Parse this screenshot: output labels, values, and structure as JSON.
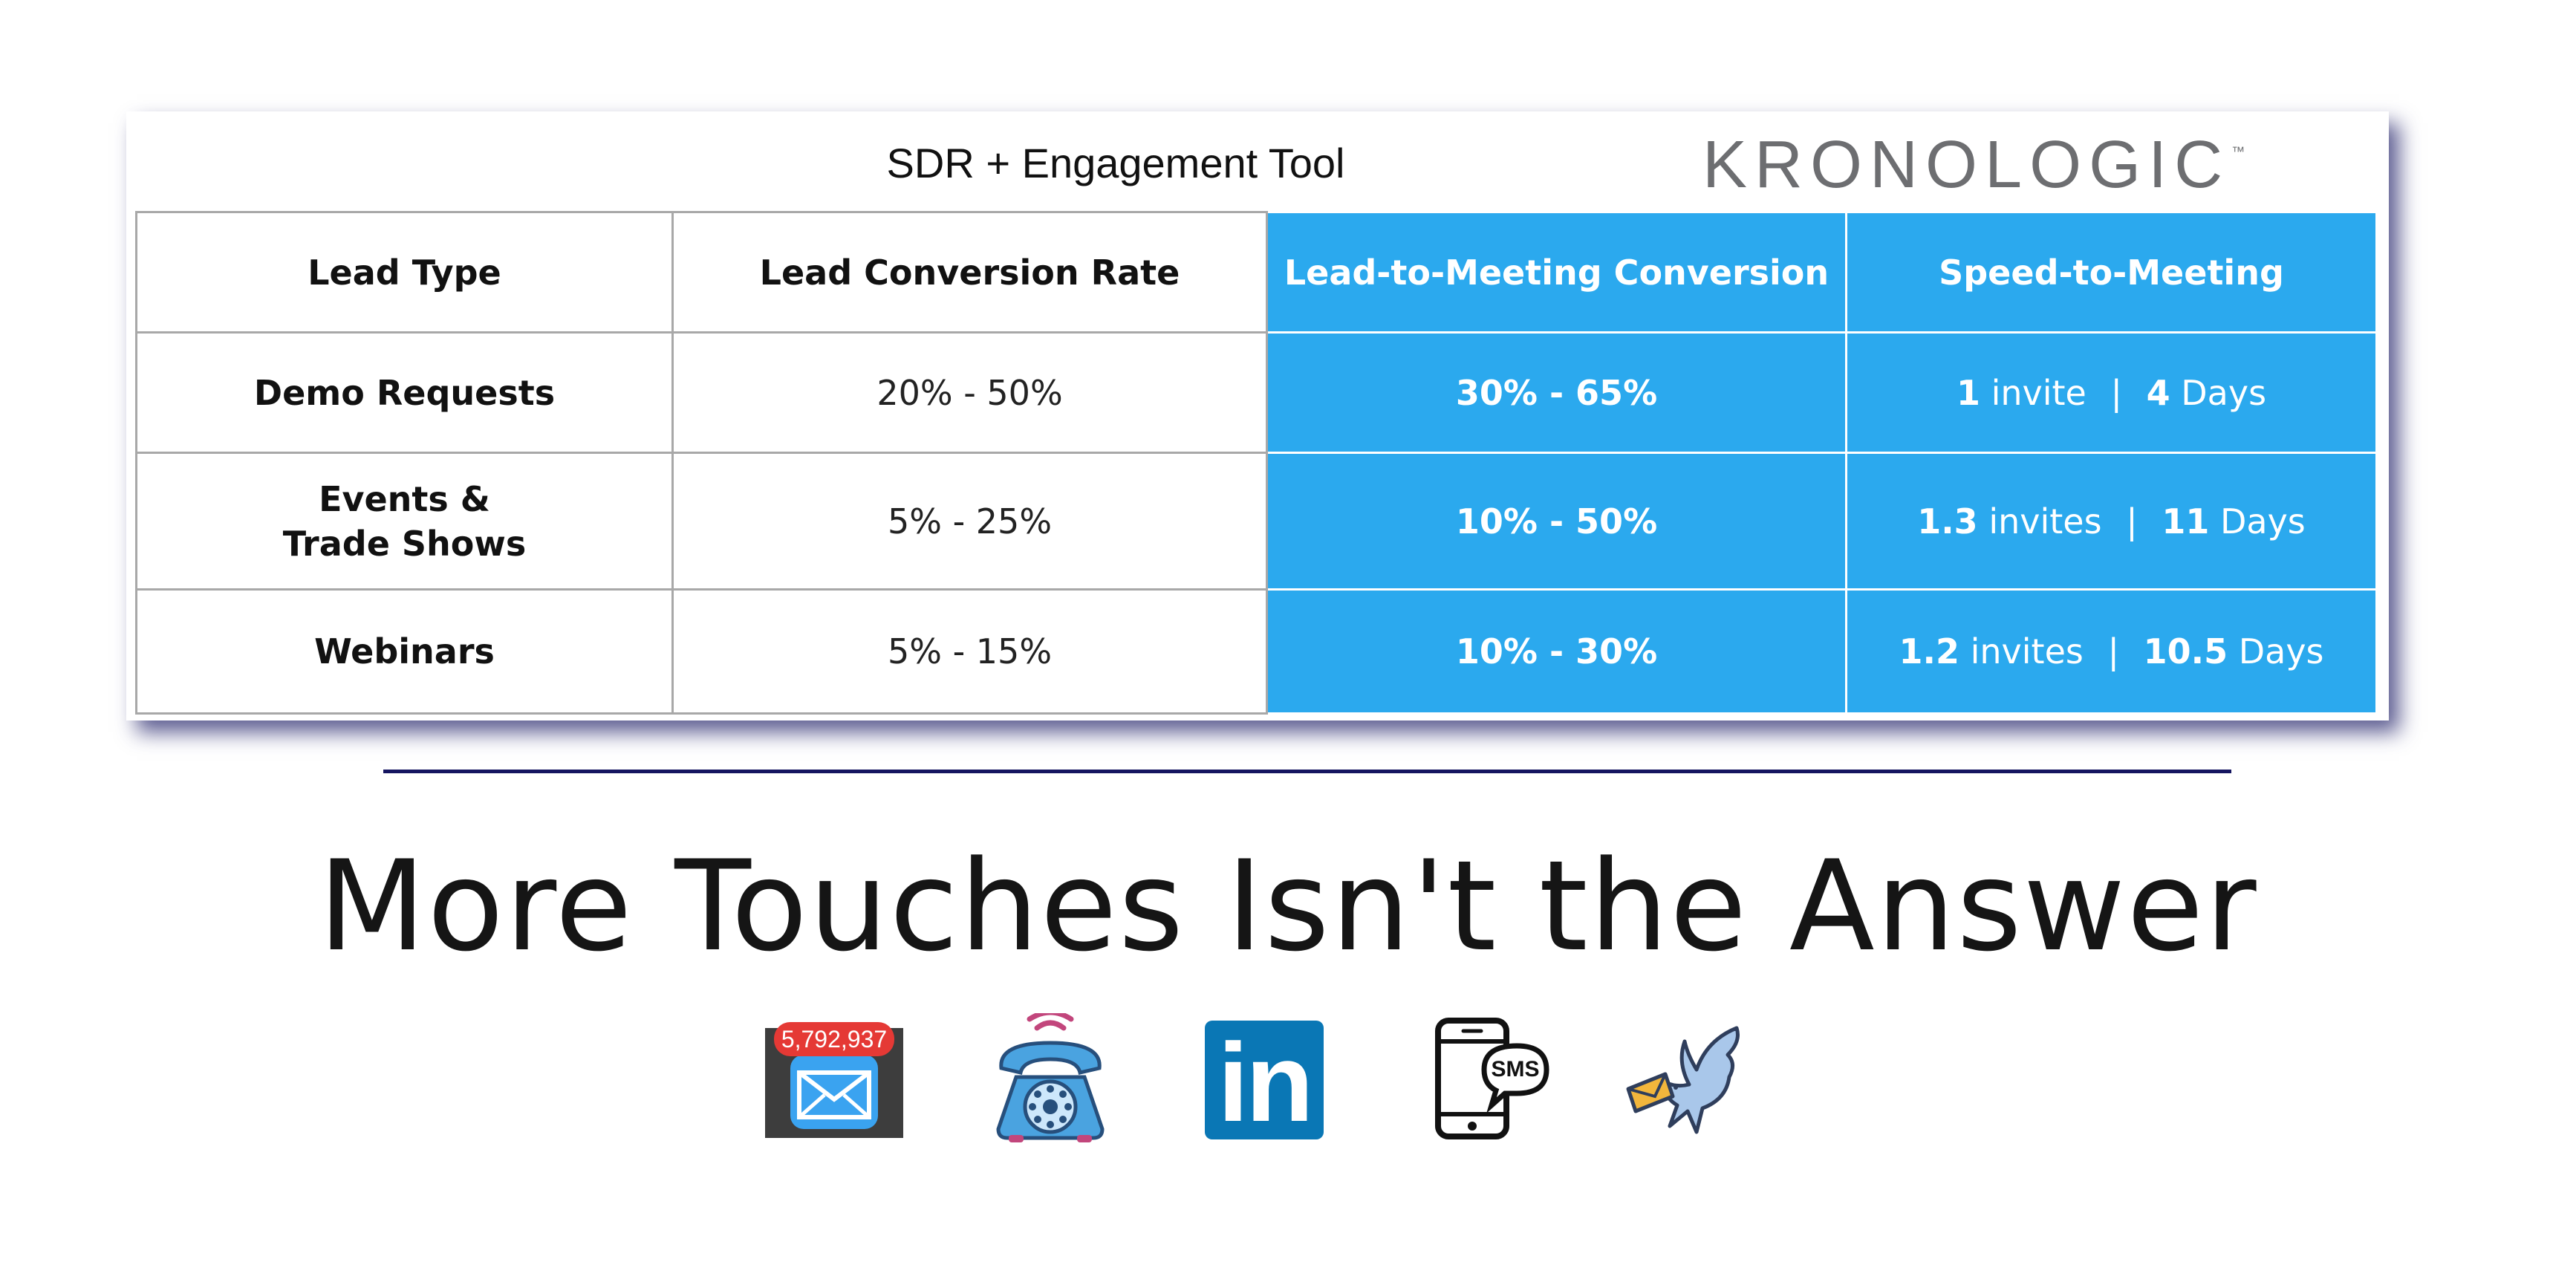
{
  "header": {
    "tool_title": "SDR + Engagement Tool",
    "logo_text": "KRONOLOGIC",
    "logo_trademark": "™"
  },
  "table": {
    "columns": [
      "Lead Type",
      "Lead Conversion Rate",
      "Lead-to-Meeting Conversion",
      "Speed-to-Meeting"
    ],
    "rows": [
      {
        "lead_type": [
          "Demo Requests"
        ],
        "lead_conversion_rate": "20% - 50%",
        "lead_to_meeting_conversion": "30% - 65%",
        "speed": {
          "invites_value": "1",
          "invites_unit": "invite",
          "separator": "|",
          "days_value": "4",
          "days_unit": "Days"
        }
      },
      {
        "lead_type": [
          "Events &",
          "Trade Shows"
        ],
        "lead_conversion_rate": "5% - 25%",
        "lead_to_meeting_conversion": "10% - 50%",
        "speed": {
          "invites_value": "1.3",
          "invites_unit": "invites",
          "separator": "|",
          "days_value": "11",
          "days_unit": "Days"
        }
      },
      {
        "lead_type": [
          "Webinars"
        ],
        "lead_conversion_rate": "5% - 15%",
        "lead_to_meeting_conversion": "10% - 30%",
        "speed": {
          "invites_value": "1.2",
          "invites_unit": "invites",
          "separator": "|",
          "days_value": "10.5",
          "days_unit": "Days"
        }
      }
    ]
  },
  "headline": "More Touches Isn't the Answer",
  "icons": {
    "mail_badge_count": "5,792,937",
    "sms_label": "SMS",
    "linkedin_label": "in",
    "names": [
      "mail-icon",
      "telephone-icon",
      "linkedin-icon",
      "sms-phone-icon",
      "carrier-pigeon-icon"
    ]
  },
  "colors": {
    "table_blue": "#2ba9ee",
    "divider_navy": "#151560",
    "linkedin_blue": "#0a77b5",
    "badge_red": "#e53935",
    "mail_blue": "#3aa3f0"
  }
}
